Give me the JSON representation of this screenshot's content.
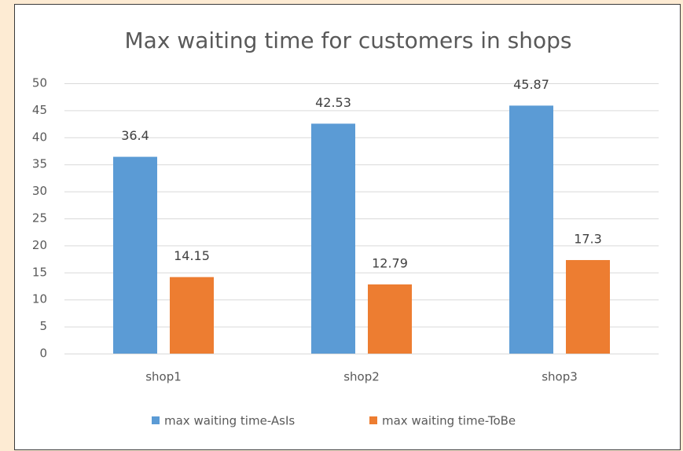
{
  "chart_data": {
    "type": "bar",
    "title": "Max waiting time for customers in shops",
    "categories": [
      "shop1",
      "shop2",
      "shop3"
    ],
    "series": [
      {
        "name": "max waiting time-AsIs",
        "color": "#5b9bd5",
        "values": [
          36.4,
          42.53,
          45.87
        ]
      },
      {
        "name": "max waiting time-ToBe",
        "color": "#ed7d31",
        "values": [
          14.15,
          12.79,
          17.3
        ]
      }
    ],
    "ylim": [
      0,
      50
    ],
    "yticks": [
      0,
      5,
      10,
      15,
      20,
      25,
      30,
      35,
      40,
      45,
      50
    ],
    "grid": true,
    "legend": "bottom"
  }
}
